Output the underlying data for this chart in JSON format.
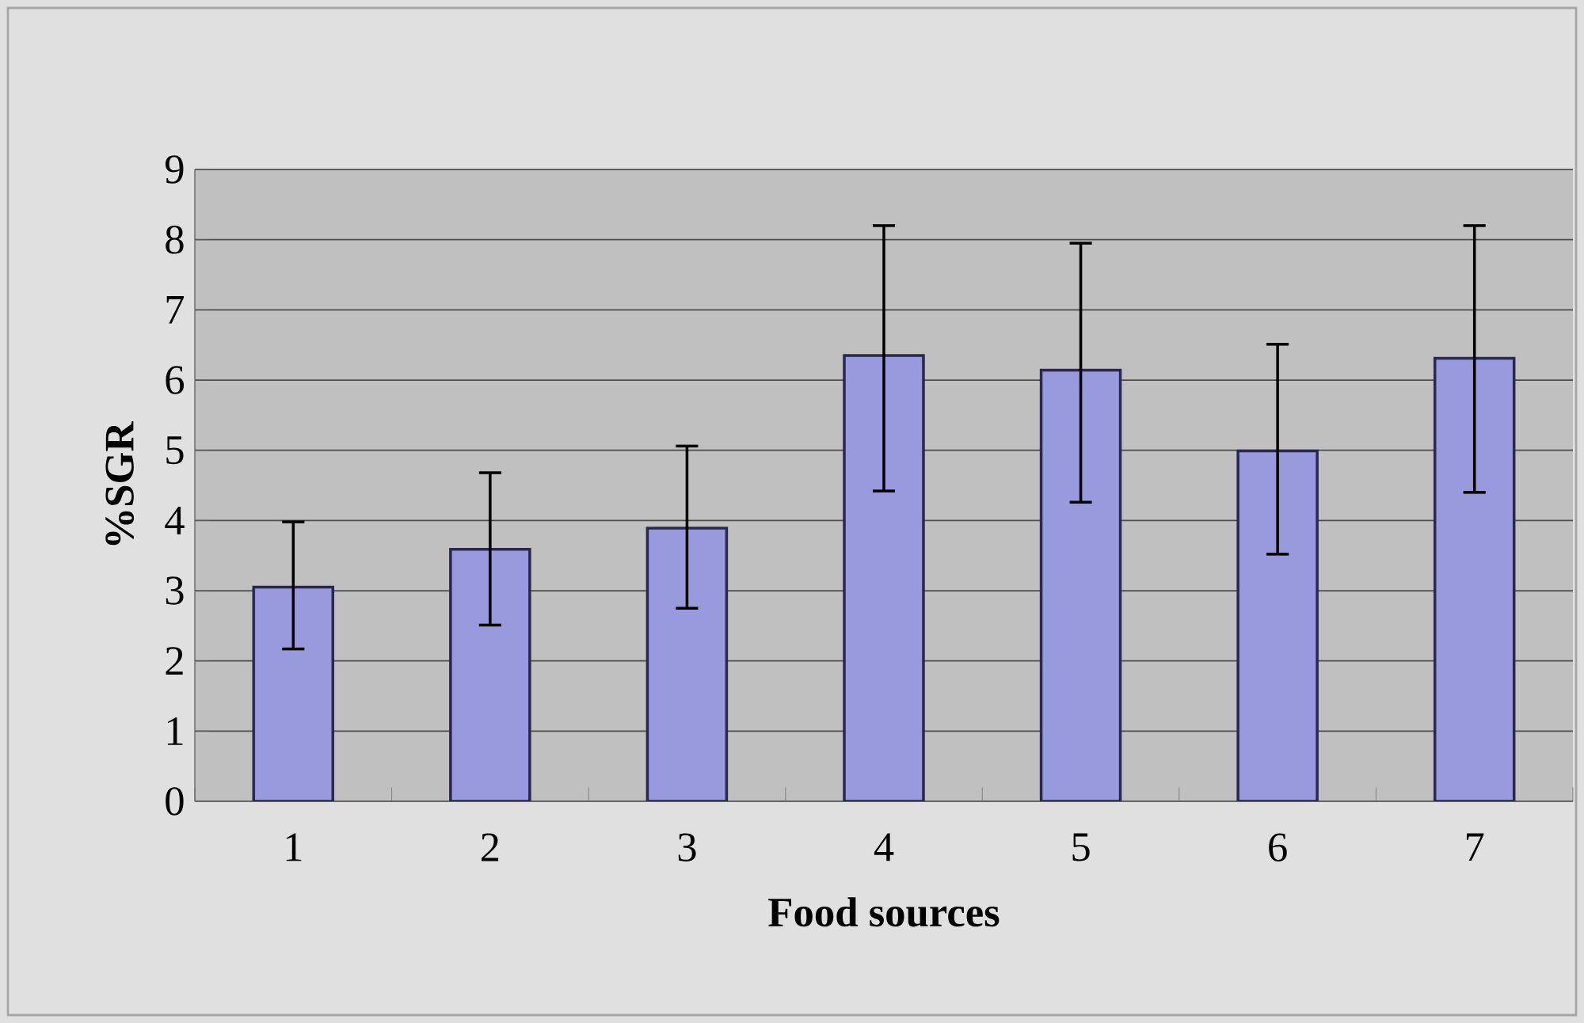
{
  "chart_data": {
    "type": "bar",
    "xlabel": "Food sources",
    "ylabel": "%SGR",
    "categories": [
      "1",
      "2",
      "3",
      "4",
      "5",
      "6",
      "7"
    ],
    "values": [
      3.05,
      3.59,
      3.89,
      6.35,
      6.14,
      4.99,
      6.31
    ],
    "errors": [
      [
        2.17,
        3.98
      ],
      [
        2.51,
        4.68
      ],
      [
        2.75,
        5.06
      ],
      [
        4.42,
        8.2
      ],
      [
        4.26,
        7.95
      ],
      [
        3.52,
        6.51
      ],
      [
        4.4,
        8.2
      ]
    ],
    "color": "#9999dd",
    "ylim": [
      0,
      9
    ],
    "yticks": [
      0,
      1,
      2,
      3,
      4,
      5,
      6,
      7,
      8,
      9
    ],
    "grid": "y"
  }
}
